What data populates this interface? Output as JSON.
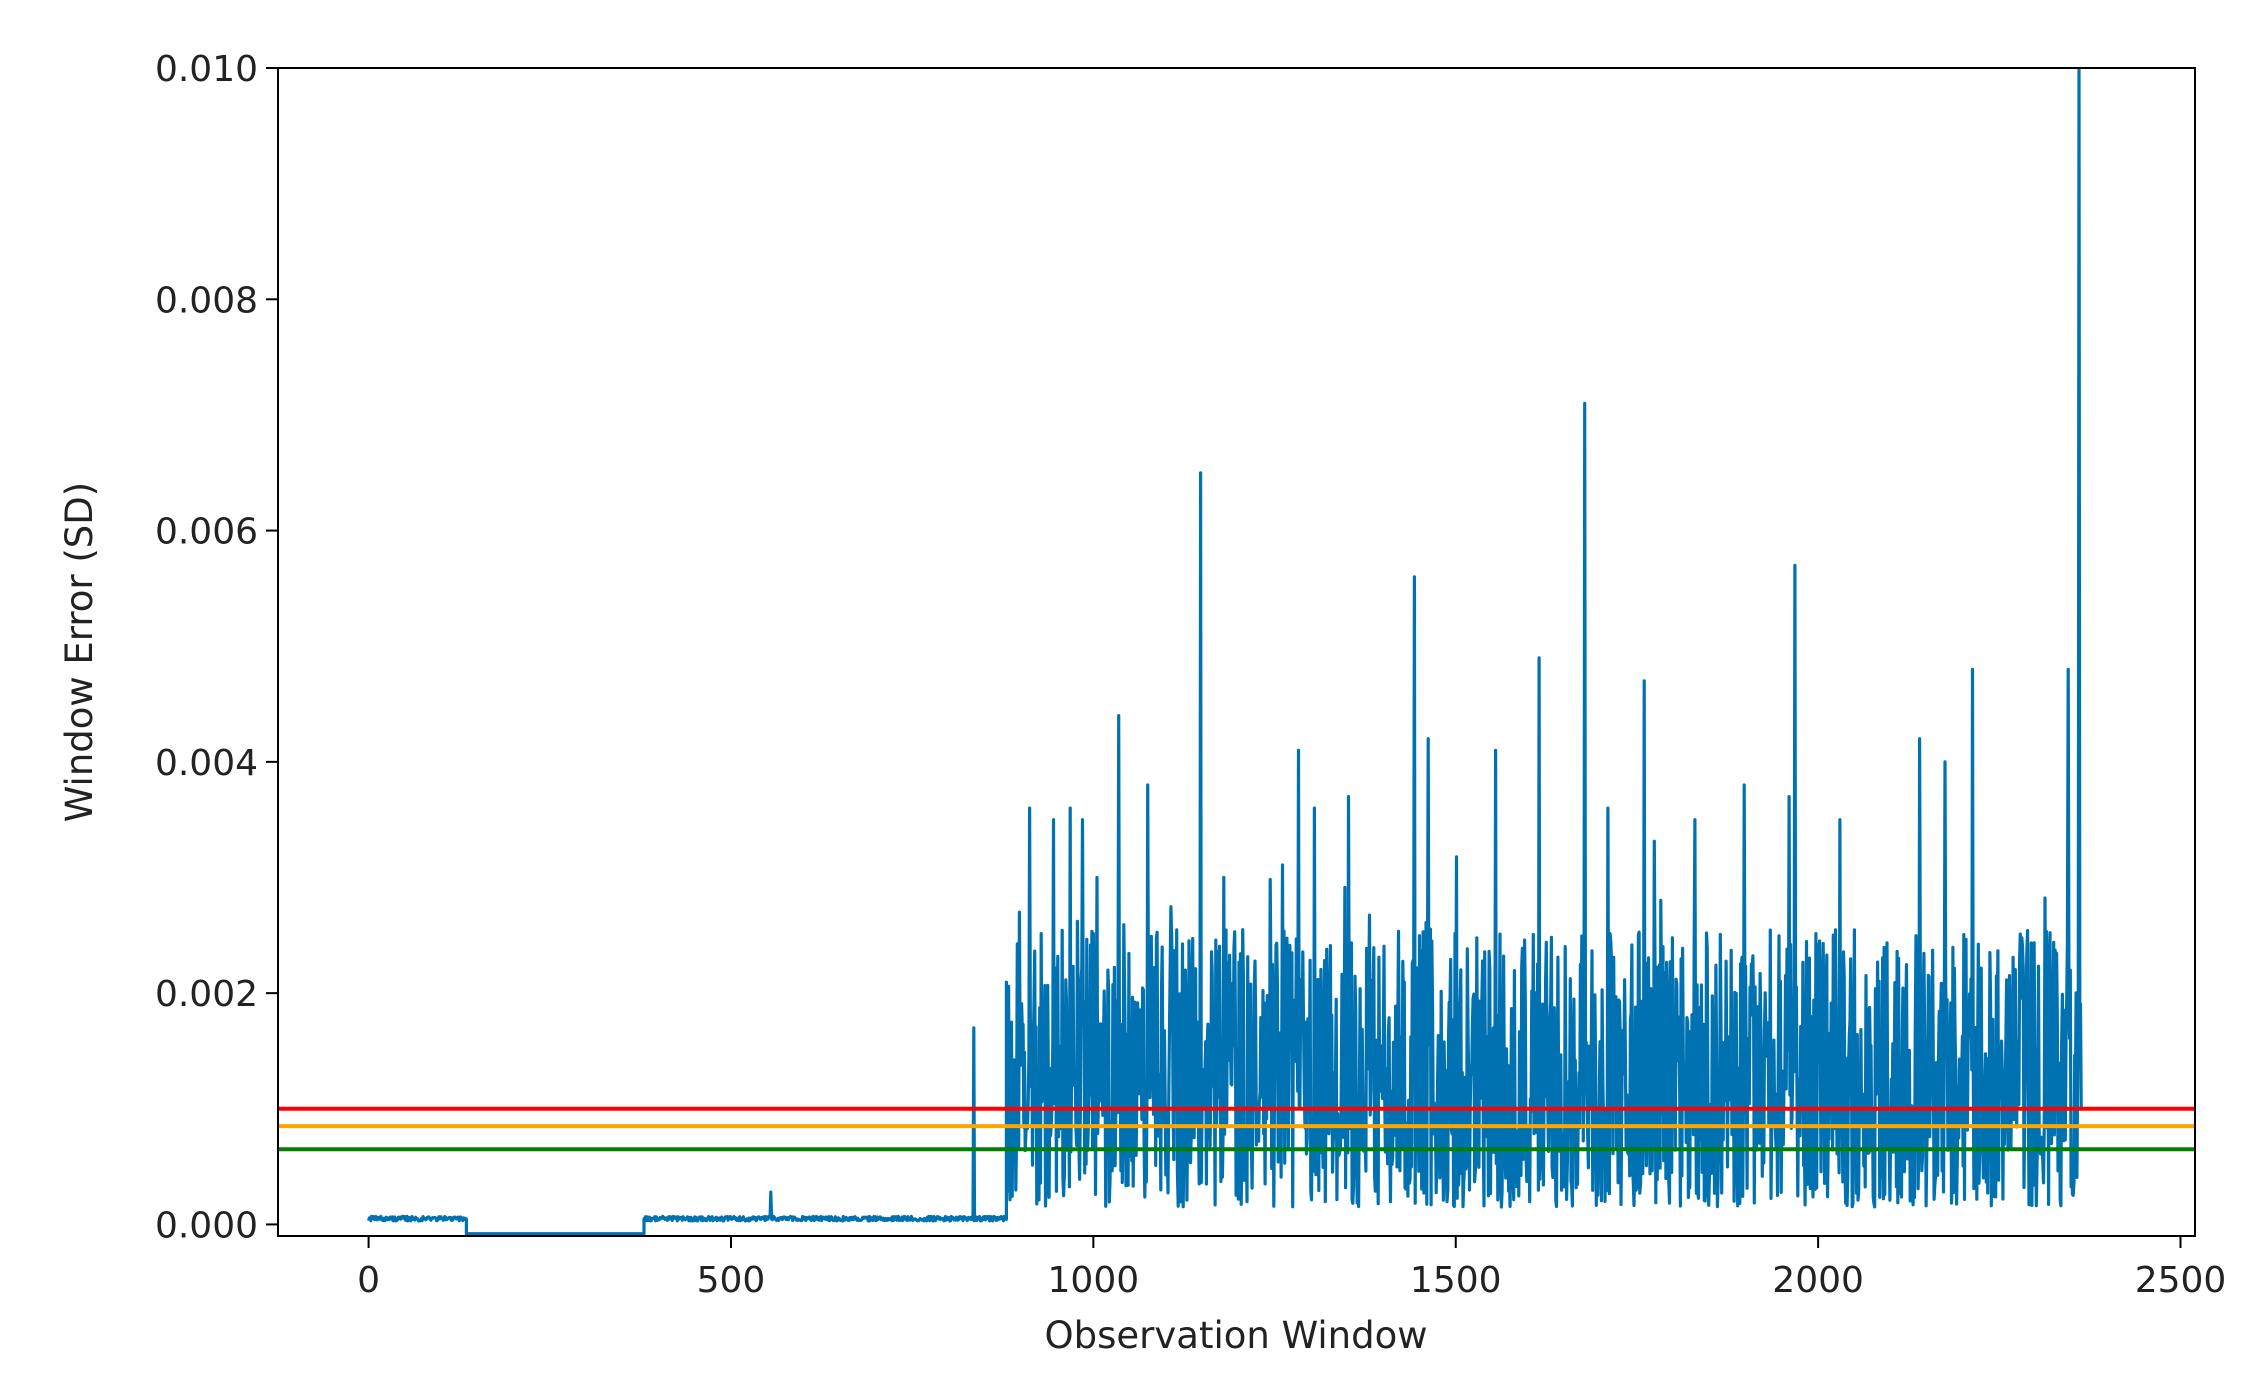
{
  "chart_data": {
    "type": "line",
    "title": "",
    "xlabel": "Observation Window",
    "ylabel": "Window Error  (SD)",
    "xlim": [
      -125,
      2520
    ],
    "ylim": [
      -0.0001,
      0.01
    ],
    "x_ticks": [
      0,
      500,
      1000,
      1500,
      2000,
      2500
    ],
    "x_tick_labels": [
      "0",
      "500",
      "1000",
      "1500",
      "2000",
      "2500"
    ],
    "y_ticks": [
      0.0,
      0.002,
      0.004,
      0.006,
      0.008,
      0.01
    ],
    "y_tick_labels": [
      "0.000",
      "0.002",
      "0.004",
      "0.006",
      "0.008",
      "0.010"
    ],
    "grid": false,
    "legend": "none",
    "series_color": "#0072B2",
    "thresholds": [
      {
        "value": 0.001,
        "color": "#FF0000"
      },
      {
        "value": 0.00085,
        "color": "#FFA500"
      },
      {
        "value": 0.00065,
        "color": "#008000"
      }
    ],
    "segments": [
      {
        "x_start": 0,
        "x_end": 135,
        "level": 5e-05,
        "noise": 4e-05
      },
      {
        "x_start": 135,
        "x_end": 380,
        "level": -8e-05,
        "noise": 0.0
      },
      {
        "x_start": 380,
        "x_end": 880,
        "level": 5e-05,
        "noise": 4e-05
      },
      {
        "x_start": 880,
        "x_end": 2363,
        "level": 0.0014,
        "noise": 0.0011
      }
    ],
    "peaks": [
      {
        "x": 555,
        "y": 0.00028
      },
      {
        "x": 835,
        "y": 0.0017
      },
      {
        "x": 898,
        "y": 0.0027
      },
      {
        "x": 912,
        "y": 0.0036
      },
      {
        "x": 945,
        "y": 0.0035
      },
      {
        "x": 968,
        "y": 0.0036
      },
      {
        "x": 985,
        "y": 0.0035
      },
      {
        "x": 1005,
        "y": 0.003
      },
      {
        "x": 1035,
        "y": 0.0044
      },
      {
        "x": 1075,
        "y": 0.0038
      },
      {
        "x": 1148,
        "y": 0.0065
      },
      {
        "x": 1180,
        "y": 0.003
      },
      {
        "x": 1283,
        "y": 0.0041
      },
      {
        "x": 1305,
        "y": 0.0036
      },
      {
        "x": 1352,
        "y": 0.0037
      },
      {
        "x": 1443,
        "y": 0.0056
      },
      {
        "x": 1462,
        "y": 0.0042
      },
      {
        "x": 1555,
        "y": 0.0041
      },
      {
        "x": 1615,
        "y": 0.0049
      },
      {
        "x": 1678,
        "y": 0.0071
      },
      {
        "x": 1710,
        "y": 0.0036
      },
      {
        "x": 1760,
        "y": 0.0047
      },
      {
        "x": 1830,
        "y": 0.0035
      },
      {
        "x": 1898,
        "y": 0.0038
      },
      {
        "x": 1960,
        "y": 0.0037
      },
      {
        "x": 1968,
        "y": 0.0057
      },
      {
        "x": 2030,
        "y": 0.0035
      },
      {
        "x": 2140,
        "y": 0.0042
      },
      {
        "x": 2175,
        "y": 0.004
      },
      {
        "x": 2213,
        "y": 0.0048
      },
      {
        "x": 2345,
        "y": 0.0048
      },
      {
        "x": 2360,
        "y": 0.01
      }
    ]
  }
}
